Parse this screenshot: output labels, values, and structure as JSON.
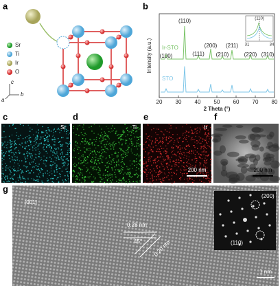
{
  "panels": {
    "a": {
      "label": "a",
      "legend": [
        "Sr",
        "Ti",
        "Ir",
        "O"
      ],
      "axes": [
        "c",
        "b",
        "a"
      ]
    },
    "b": {
      "label": "b",
      "y_label": "Intensity (a.u.)",
      "x_label": "2 Theta (°)",
      "xlim": [
        20,
        80
      ],
      "xticks": [
        20,
        30,
        40,
        50,
        60,
        70,
        80
      ],
      "series": [
        "Ir-STO",
        "STO"
      ],
      "peaks": [
        "(100)",
        "(110)",
        "(111)",
        "(200)",
        "(210)",
        "(211)",
        "(220)",
        "(310)"
      ],
      "inset": {
        "peak": "(110)",
        "xlim": [
          31,
          34
        ],
        "xticks": [
          31,
          34
        ]
      }
    },
    "c": {
      "label": "c",
      "element": "Sr"
    },
    "d": {
      "label": "d",
      "element": "Ti"
    },
    "e": {
      "label": "e",
      "element": "Ir",
      "scale_bar": "200 nm"
    },
    "f": {
      "label": "f",
      "scale_bar": "200 nm"
    },
    "g": {
      "label": "g",
      "zone_axis": "[001]",
      "spacing_1": "0.28 nm",
      "angle": "45°",
      "spacing_2": "0.20 nm",
      "fft_spots": [
        "(200)",
        "(110)"
      ],
      "scale_bar": "1 nm"
    }
  }
}
